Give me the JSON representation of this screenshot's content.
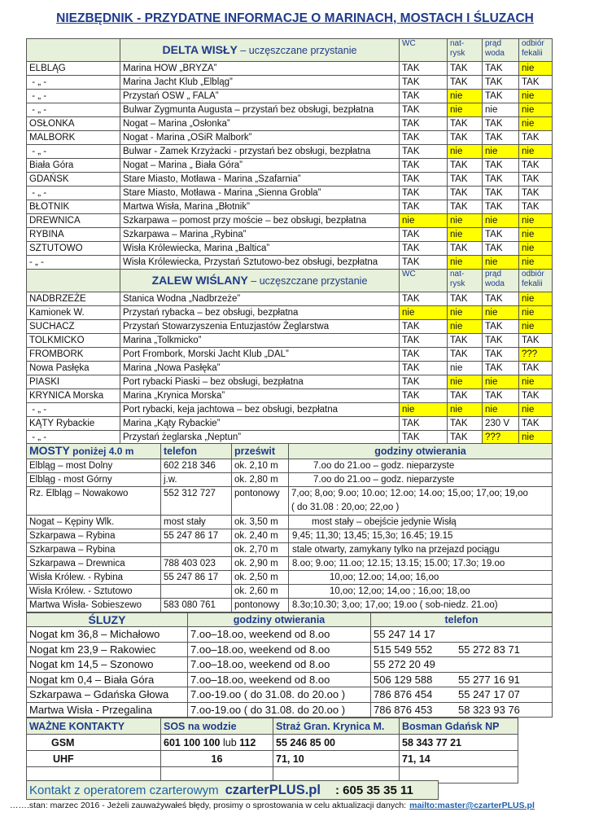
{
  "title": "NIEZBĘDNIK  -  PRZYDATNE INFORMACJE O MARINACH, MOSTACH I ŚLUZACH",
  "amenity_headers": [
    "WC",
    "nat-\nrysk",
    "prąd\nwoda",
    "odbiór\nfekalii"
  ],
  "delta": {
    "title": "DELTA WISŁY",
    "subtitle": " – uczęszczane przystanie",
    "rows": [
      {
        "place": "ELBLĄG",
        "name": "Marina HOW „BRYZA”",
        "v": [
          "TAK",
          "TAK",
          "TAK",
          "nie"
        ],
        "hl": [
          0,
          0,
          0,
          1
        ]
      },
      {
        "place": " - „ -",
        "name": "Marina Jacht Klub „Elbląg”",
        "v": [
          "TAK",
          "TAK",
          "TAK",
          "TAK"
        ],
        "hl": [
          0,
          0,
          0,
          0
        ]
      },
      {
        "place": " - „ -",
        "name": "Przystań OSW „ FALA”",
        "v": [
          "TAK",
          "nie",
          "TAK",
          "nie"
        ],
        "hl": [
          0,
          1,
          0,
          1
        ]
      },
      {
        "place": " - „ -",
        "name": "Bulwar Zygmunta Augusta – przystań bez obsługi, bezpłatna",
        "v": [
          "TAK",
          "nie",
          "nie",
          "nie"
        ],
        "hl": [
          0,
          1,
          0,
          1
        ]
      },
      {
        "place": "OSŁONKA",
        "name": "Nogat – Marina „Osłonka”",
        "v": [
          "TAK",
          "TAK",
          "TAK",
          "nie"
        ],
        "hl": [
          0,
          0,
          0,
          1
        ]
      },
      {
        "place": "MALBORK",
        "name": "Nogat -  Marina „OSiR Malbork”",
        "v": [
          "TAK",
          "TAK",
          "TAK",
          "TAK"
        ],
        "hl": [
          0,
          0,
          0,
          0
        ]
      },
      {
        "place": " - „ -",
        "name": "Bulwar - Zamek Krzyżacki - przystań bez obsługi, bezpłatna",
        "v": [
          "TAK",
          "nie",
          "nie",
          "nie"
        ],
        "hl": [
          0,
          1,
          1,
          1
        ]
      },
      {
        "place": "Biała Góra",
        "name": "Nogat –  Marina „ Biała Góra”",
        "v": [
          "TAK",
          "TAK",
          "TAK",
          "TAK"
        ],
        "hl": [
          0,
          0,
          0,
          0
        ]
      },
      {
        "place": "GDAŃSK",
        "name": "Stare Miasto,  Motława - Marina „Szafarnia”",
        "v": [
          "TAK",
          "TAK",
          "TAK",
          "TAK"
        ],
        "hl": [
          0,
          0,
          0,
          0
        ]
      },
      {
        "place": " - „ -",
        "name": "Stare Miasto,  Motława - Marina „Sienna Grobla”",
        "v": [
          "TAK",
          "TAK",
          "TAK",
          "TAK"
        ],
        "hl": [
          0,
          0,
          0,
          0
        ]
      },
      {
        "place": "BŁOTNIK",
        "name": "Martwa Wisła, Marina „Błotnik”",
        "v": [
          "TAK",
          "TAK",
          "TAK",
          "TAK"
        ],
        "hl": [
          0,
          0,
          0,
          0
        ]
      },
      {
        "place": "DREWNICA",
        "name": "Szkarpawa – pomost przy moście  – bez obsługi, bezpłatna",
        "v": [
          "nie",
          "nie",
          "nie",
          "nie"
        ],
        "hl": [
          1,
          1,
          1,
          1
        ]
      },
      {
        "place": "RYBINA",
        "name": "Szkarpawa – Marina „Rybina”",
        "v": [
          "TAK",
          "nie",
          "TAK",
          "nie"
        ],
        "hl": [
          0,
          1,
          0,
          1
        ]
      },
      {
        "place": "SZTUTOWO",
        "name": "Wisła Królewiecka, Marina „Baltica”",
        "v": [
          "TAK",
          "TAK",
          "TAK",
          "nie"
        ],
        "hl": [
          0,
          0,
          0,
          1
        ]
      },
      {
        "place": "- „ -",
        "name": "Wisła Królewiecka, Przystań Sztutowo-bez obsługi, bezpłatna",
        "v": [
          "TAK",
          "nie",
          "nie",
          "nie"
        ],
        "hl": [
          0,
          1,
          1,
          1
        ]
      }
    ]
  },
  "zalew": {
    "title": "ZALEW WIŚLANY",
    "subtitle": " – uczęszczane przystanie",
    "rows": [
      {
        "place": "NADBRZEŻE",
        "name": "Stanica Wodna „Nadbrzeże”",
        "v": [
          "TAK",
          "TAK",
          "TAK",
          "nie"
        ],
        "hl": [
          0,
          0,
          0,
          1
        ]
      },
      {
        "place": "Kamionek W.",
        "name": "Przystań rybacka – bez obsługi, bezpłatna",
        "v": [
          "nie",
          "nie",
          "nie",
          "nie"
        ],
        "hl": [
          1,
          1,
          1,
          1
        ]
      },
      {
        "place": "SUCHACZ",
        "name": "Przystań Stowarzyszenia Entuzjastów Żeglarstwa",
        "v": [
          "TAK",
          "nie",
          "TAK",
          "nie"
        ],
        "hl": [
          0,
          1,
          0,
          1
        ]
      },
      {
        "place": "TOLKMICKO",
        "name": "Marina „Tolkmicko”",
        "v": [
          "TAK",
          "TAK",
          "TAK",
          "TAK"
        ],
        "hl": [
          0,
          0,
          0,
          0
        ]
      },
      {
        "place": "FROMBORK",
        "name": "Port Frombork, Morski Jacht Klub „DAL”",
        "v": [
          "TAK",
          "TAK",
          "TAK",
          "???"
        ],
        "hl": [
          0,
          0,
          0,
          1
        ]
      },
      {
        "place": "Nowa Pasłęka",
        "name": "Marina  „Nowa Pasłęka”",
        "v": [
          "TAK",
          "nie",
          "TAK",
          "TAK"
        ],
        "hl": [
          0,
          0,
          0,
          0
        ]
      },
      {
        "place": "PIASKI",
        "name": "Port rybacki Piaski – bez obsługi, bezpłatna",
        "v": [
          "TAK",
          "nie",
          "nie",
          "nie"
        ],
        "hl": [
          0,
          1,
          1,
          1
        ]
      },
      {
        "place": "KRYNICA Morska",
        "name": "Marina „Krynica Morska”",
        "v": [
          "TAK",
          "TAK",
          "TAK",
          "TAK"
        ],
        "hl": [
          0,
          0,
          0,
          0
        ]
      },
      {
        "place": " - „ -",
        "name": "Port rybacki, keja jachtowa – bez obsługi, bezpłatna",
        "v": [
          "nie",
          "nie",
          "nie",
          "nie"
        ],
        "hl": [
          1,
          1,
          1,
          1
        ]
      },
      {
        "place": "KĄTY Rybackie",
        "name": "Marina „Kąty Rybackie”",
        "v": [
          "TAK",
          "TAK",
          "230 V",
          "TAK"
        ],
        "hl": [
          0,
          0,
          0,
          0
        ]
      },
      {
        "place": " - „ -",
        "name": "Przystań żeglarska „Neptun”",
        "v": [
          "TAK",
          "TAK",
          "???",
          "nie"
        ],
        "hl": [
          0,
          0,
          1,
          1
        ]
      }
    ]
  },
  "mosty": {
    "title": "MOSTY",
    "title_suffix": " poniżej 4.0 m",
    "headers": [
      "telefon",
      "prześwit",
      "godziny otwierania"
    ],
    "rows": [
      [
        "Elbląg – most Dolny",
        "602 218 346",
        "ok. 2,10 m",
        "7.oo do 21.oo – godz. nieparzyste"
      ],
      [
        "Elbląg - most Górny",
        "j.w.",
        "ok. 2,80 m",
        "7.oo do 21.oo – godz. nieparzyste"
      ],
      [
        "Rz. Elbląg – Nowakowo",
        "552 312 727",
        "pontonowy",
        "7,oo; 8,oo; 9.oo; 10.oo; 12.oo; 14.oo; 15,oo; 17,oo; 19,oo\n( do 31.08 : 20,oo; 22,oo )"
      ],
      [
        "Nogat  – Kępiny Wlk.",
        "most stały",
        "ok. 3,50 m",
        "most stały – obejście jedynie Wisłą"
      ],
      [
        "Szkarpawa – Rybina",
        "55 247 86 17",
        "ok. 2,40 m",
        "9,45;  11,30;  13,45;  15,3o;  16.45;  19.15"
      ],
      [
        "Szkarpawa – Rybina",
        "",
        "ok. 2,70 m",
        "stale otwarty, zamykany tylko na przejazd pociągu"
      ],
      [
        "Szkarpawa – Drewnica",
        "788 403 023",
        "ok. 2,90 m",
        "8.oo; 9.oo;  11.oo; 12.15; 13.15; 15.00; 17.3o;  19.oo"
      ],
      [
        "Wisła Królew. - Rybina",
        "55 247 86 17",
        "ok. 2,50 m",
        "10,oo;  12.oo;  14,oo;  16,oo"
      ],
      [
        "Wisła Królew. - Sztutowo",
        "",
        "ok. 2,60 m",
        "10,oo;  12,oo;  14,oo ; 16,oo;  18,oo"
      ],
      [
        "Martwa Wisła- Sobieszewo",
        "583 080 761",
        "pontonowy",
        "8.3o;10.30; 3,oo; 17,oo; 19.oo ( sob-niedz. 21.oo)"
      ]
    ]
  },
  "sluzy": {
    "title": "ŚLUZY",
    "headers": [
      "godziny otwierania",
      "telefon"
    ],
    "rows": [
      [
        "Nogat km 36,8 – Michałowo",
        "7.oo–18.oo,  weekend  od 8.oo",
        "55 247 14 17",
        ""
      ],
      [
        "Nogat km 23,9 – Rakowiec",
        "7.oo–18.oo,  weekend  od 8.oo",
        "515 549 552",
        "55 272 83 71"
      ],
      [
        "Nogat km 14,5 – Szonowo",
        "7.oo–18.oo,  weekend od 8.oo",
        "55 272 20 49",
        ""
      ],
      [
        "Nogat km 0,4  – Biała Góra",
        "7.oo–18.oo,  weekend od 8.oo",
        "506 129 588",
        "55 277 16 91"
      ],
      [
        "Szkarpawa – Gdańska Głowa",
        "7.oo-19.oo ( do 31.08. do 20.oo )",
        "786 876 454",
        "55 247 17 07"
      ],
      [
        "Martwa Wisła - Przegalina",
        "7.oo-19.oo ( do 31.08. do 20.oo )",
        "786 876 453",
        "58 323 93 76"
      ]
    ]
  },
  "kontakty": {
    "headers": [
      "WAŻNE  KONTAKTY",
      "SOS  na wodzie",
      "Straż Gran. Krynica M.",
      "Bosman  Gdańsk NP"
    ],
    "gsm": {
      "label": "GSM",
      "sos": "601 100 100",
      "sos_or": " lub ",
      "sos_alt": "112",
      "straz": "55 246 85 00",
      "bosman": "58 343 77 21"
    },
    "uhf": {
      "label": "UHF",
      "sos": "16",
      "straz": "71, 10",
      "bosman": "71,    14"
    }
  },
  "contact_bar": {
    "text": "Kontakt z operatorem czarterowym",
    "brand": "czarterPLUS.pl",
    "phone": ": 605 35 35 11"
  },
  "footer": {
    "text": "…….stan: marzec 2016  - Jeżeli zauważywałeś błędy, prosimy o sprostowania w celu aktualizacji danych:",
    "link": "mailto:master@czarterPLUS.pl"
  },
  "colors": {
    "highlight": "#ffff00",
    "header_bg": "#e6f0da",
    "heading": "#1f3b8c",
    "link": "#1f5fa8"
  }
}
